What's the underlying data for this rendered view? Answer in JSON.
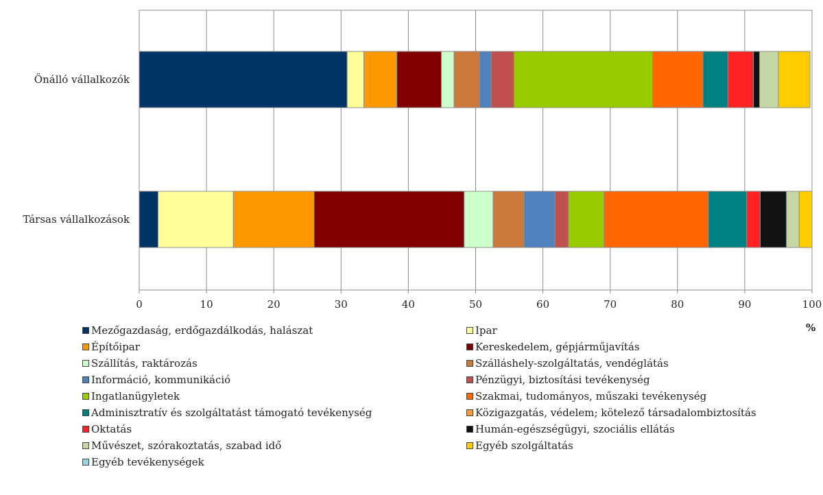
{
  "chart_data": {
    "type": "bar",
    "orientation": "horizontal",
    "stacked": true,
    "x_unit": "%",
    "xlim": [
      0,
      100
    ],
    "x_ticks": [
      "0",
      "10",
      "20",
      "30",
      "40",
      "50",
      "60",
      "70",
      "80",
      "90",
      "100"
    ],
    "grid": true,
    "legend_position": "bottom",
    "categories": [
      "Önálló  vállalkozók",
      "Társas  vállalkozások"
    ],
    "series": [
      {
        "name": "Mezőgazdaság, erdőgazdálkodás, halászat",
        "color": "#003366",
        "values": [
          30.9,
          2.8
        ]
      },
      {
        "name": "Ipar",
        "color": "#FFFF99",
        "values": [
          2.5,
          11.2
        ]
      },
      {
        "name": "Építőipar",
        "color": "#FF9900",
        "values": [
          4.9,
          12.0
        ]
      },
      {
        "name": "Kereskedelem, gépjárműjavítás",
        "color": "#800000",
        "values": [
          6.6,
          22.3
        ]
      },
      {
        "name": "Szállítás, raktározás",
        "color": "#CCFFCC",
        "values": [
          1.9,
          4.3
        ]
      },
      {
        "name": "Szálláshely-szolgáltatás, vendéglátás",
        "color": "#CC7A3C",
        "values": [
          3.8,
          4.6
        ]
      },
      {
        "name": "Információ, kommunikáció",
        "color": "#4F81BD",
        "values": [
          1.7,
          4.6
        ]
      },
      {
        "name": "Pénzügyi, biztosítási tevékenység",
        "color": "#C0504D",
        "values": [
          3.4,
          2.0
        ]
      },
      {
        "name": "Ingatlanügyletek",
        "color": "#99CC00",
        "values": [
          20.6,
          5.3
        ]
      },
      {
        "name": "Szakmai, tudományos, műszaki tevékenység",
        "color": "#FF6600",
        "values": [
          7.5,
          15.5
        ]
      },
      {
        "name": "Adminisztratív és szolgáltatást támogató tevékenység",
        "color": "#008080",
        "values": [
          3.7,
          5.7
        ]
      },
      {
        "name": "Közigazgatás, védelem; kötelező társadalombiztosítás",
        "color": "#FF9933",
        "values": [
          0.0,
          0.0
        ]
      },
      {
        "name": "Oktatás",
        "color": "#FF2222",
        "values": [
          3.8,
          2.0
        ]
      },
      {
        "name": "Humán-egészségügyi, szociális ellátás",
        "color": "#111111",
        "values": [
          0.9,
          3.9
        ]
      },
      {
        "name": "Művészet, szórakoztatás, szabad idő",
        "color": "#C4D7A4",
        "values": [
          2.8,
          1.9
        ]
      },
      {
        "name": "Egyéb szolgáltatás",
        "color": "#FFCC00",
        "values": [
          4.7,
          1.9
        ]
      },
      {
        "name": "Egyéb tevékenységek",
        "color": "#9DD3E0",
        "values": [
          0.0,
          0.0
        ]
      }
    ]
  }
}
